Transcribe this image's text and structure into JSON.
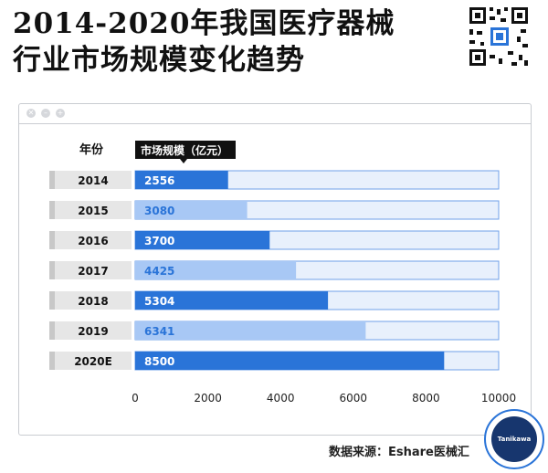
{
  "title_lines": [
    "2014-2020年我国医疗器械",
    "行业市场规模变化趋势"
  ],
  "colors": {
    "dark_bar": "#2a74d8",
    "light_bar": "#a8c8f5",
    "track": "#e8f0fc",
    "track_border": "#6fa0e8",
    "header_bg": "#111111",
    "year_tab": "#e6e6e6"
  },
  "chart_data": {
    "type": "bar",
    "orientation": "horizontal",
    "category_header": "年份",
    "value_header": "市场规模（亿元）",
    "categories": [
      "2014",
      "2015",
      "2016",
      "2017",
      "2018",
      "2019",
      "2020E"
    ],
    "values": [
      2556,
      3080,
      3700,
      4425,
      5304,
      6341,
      8500
    ],
    "value_labels": [
      "2556",
      "3080",
      "3700",
      "4425",
      "5304",
      "6341",
      "8500"
    ],
    "xlim": [
      0,
      10000
    ],
    "x_ticks": [
      0,
      2000,
      4000,
      6000,
      8000,
      10000
    ],
    "x_tick_labels": [
      "0",
      "2000",
      "4000",
      "6000",
      "8000",
      "10000"
    ],
    "grid": false,
    "legend": "none"
  },
  "source_text": "数据来源：Eshare医械汇",
  "badge_text": "Tanikawa"
}
